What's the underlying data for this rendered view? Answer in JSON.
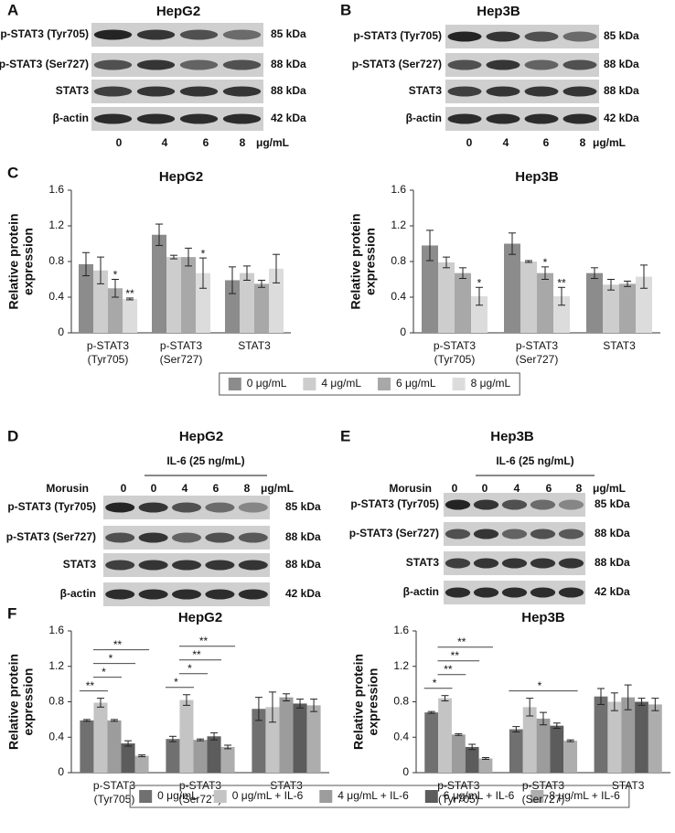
{
  "blots": [
    {
      "panel": "A",
      "title": "HepG2",
      "rows": [
        {
          "label": "p-STAT3 (Tyr705)",
          "kda": "85 kDa"
        },
        {
          "label": "p-STAT3 (Ser727)",
          "kda": "88 kDa"
        },
        {
          "label": "STAT3",
          "kda": "88 kDa"
        },
        {
          "label": "β-actin",
          "kda": "42 kDa"
        }
      ],
      "lanes": [
        "0",
        "4",
        "6",
        "8"
      ],
      "unit": "μg/mL"
    },
    {
      "panel": "B",
      "title": "Hep3B",
      "rows": [
        {
          "label": "p-STAT3 (Tyr705)",
          "kda": "85 kDa"
        },
        {
          "label": "p-STAT3 (Ser727)",
          "kda": "88 kDa"
        },
        {
          "label": "STAT3",
          "kda": "88 kDa"
        },
        {
          "label": "β-actin",
          "kda": "42 kDa"
        }
      ],
      "lanes": [
        "0",
        "4",
        "6",
        "8"
      ],
      "unit": "μg/mL"
    },
    {
      "panel": "D",
      "title": "HepG2",
      "treatment": "IL-6 (25 ng/mL)",
      "lane_label": "Morusin",
      "rows": [
        {
          "label": "p-STAT3 (Tyr705)",
          "kda": "85 kDa"
        },
        {
          "label": "p-STAT3 (Ser727)",
          "kda": "88 kDa"
        },
        {
          "label": "STAT3",
          "kda": "88 kDa"
        },
        {
          "label": "β-actin",
          "kda": "42 kDa"
        }
      ],
      "lanes": [
        "0",
        "0",
        "4",
        "6",
        "8"
      ],
      "unit": "μg/mL"
    },
    {
      "panel": "E",
      "title": "Hep3B",
      "treatment": "IL-6 (25 ng/mL)",
      "lane_label": "Morusin",
      "rows": [
        {
          "label": "p-STAT3 (Tyr705)",
          "kda": "85 kDa"
        },
        {
          "label": "p-STAT3 (Ser727)",
          "kda": "88 kDa"
        },
        {
          "label": "STAT3",
          "kda": "88 kDa"
        },
        {
          "label": "β-actin",
          "kda": "42 kDa"
        }
      ],
      "lanes": [
        "0",
        "0",
        "4",
        "6",
        "8"
      ],
      "unit": "μg/mL"
    }
  ],
  "chart_data": [
    {
      "type": "bar",
      "panel": "C",
      "title": "HepG2",
      "ylabel": [
        "Relative protein",
        "expression"
      ],
      "categories": [
        [
          "p-STAT3",
          "(Tyr705)"
        ],
        [
          "p-STAT3",
          "(Ser727)"
        ],
        [
          "STAT3"
        ]
      ],
      "ylim": [
        0,
        1.6
      ],
      "yticks": [
        0,
        0.4,
        0.8,
        1.2,
        1.6
      ],
      "legend": "bottom",
      "series": [
        {
          "name": "0 μg/mL",
          "color": "#8c8c8c",
          "values": [
            0.77,
            1.1,
            0.59
          ],
          "errors": [
            0.13,
            0.12,
            0.15
          ]
        },
        {
          "name": "4 μg/mL",
          "color": "#cdcdcd",
          "values": [
            0.7,
            0.85,
            0.67
          ],
          "errors": [
            0.15,
            0.02,
            0.08
          ]
        },
        {
          "name": "6 μg/mL",
          "color": "#a8a8a8",
          "values": [
            0.5,
            0.85,
            0.55
          ],
          "errors": [
            0.1,
            0.1,
            0.04
          ],
          "stars": [
            "*",
            null,
            null
          ]
        },
        {
          "name": "8 μg/mL",
          "color": "#dcdcdc",
          "values": [
            0.38,
            0.67,
            0.72
          ],
          "errors": [
            0.01,
            0.17,
            0.16
          ],
          "stars": [
            "**",
            "*",
            null
          ]
        }
      ]
    },
    {
      "type": "bar",
      "title": "Hep3B",
      "ylabel": [
        "Relative protein",
        "expression"
      ],
      "categories": [
        [
          "p-STAT3",
          "(Tyr705)"
        ],
        [
          "p-STAT3",
          "(Ser727)"
        ],
        [
          "STAT3"
        ]
      ],
      "ylim": [
        0,
        1.6
      ],
      "yticks": [
        0,
        0.4,
        0.8,
        1.2,
        1.6
      ],
      "series": [
        {
          "color": "#8c8c8c",
          "values": [
            0.98,
            1.0,
            0.67
          ],
          "errors": [
            0.17,
            0.12,
            0.06
          ]
        },
        {
          "color": "#cdcdcd",
          "values": [
            0.79,
            0.8,
            0.54
          ],
          "errors": [
            0.06,
            0.01,
            0.06
          ]
        },
        {
          "color": "#a8a8a8",
          "values": [
            0.67,
            0.67,
            0.55
          ],
          "errors": [
            0.06,
            0.07,
            0.03
          ],
          "stars": [
            null,
            "*",
            null
          ]
        },
        {
          "color": "#dcdcdc",
          "values": [
            0.41,
            0.41,
            0.63
          ],
          "errors": [
            0.1,
            0.1,
            0.13
          ],
          "stars": [
            "*",
            "**",
            null
          ]
        }
      ]
    },
    {
      "type": "bar",
      "panel": "F",
      "title": "HepG2",
      "ylabel": [
        "Relative protein",
        "expression"
      ],
      "categories": [
        [
          "p-STAT3",
          "(Tyr705)"
        ],
        [
          "p-STAT3",
          "(Ser727)"
        ],
        [
          "STAT3"
        ]
      ],
      "ylim": [
        0,
        1.6
      ],
      "yticks": [
        0,
        0.4,
        0.8,
        1.2,
        1.6
      ],
      "legend": "bottom",
      "series": [
        {
          "name": "0 μg/mL",
          "color": "#707070",
          "values": [
            0.59,
            0.38,
            0.72
          ],
          "errors": [
            0.01,
            0.03,
            0.13
          ]
        },
        {
          "name": "0 μg/mL + IL-6",
          "color": "#c4c4c4",
          "values": [
            0.79,
            0.82,
            0.74
          ],
          "errors": [
            0.05,
            0.06,
            0.17
          ]
        },
        {
          "name": "4 μg/mL + IL-6",
          "color": "#9c9c9c",
          "values": [
            0.59,
            0.37,
            0.85
          ],
          "errors": [
            0.01,
            0.01,
            0.04
          ]
        },
        {
          "name": "6 μg/mL + IL-6",
          "color": "#5c5c5c",
          "values": [
            0.33,
            0.41,
            0.78
          ],
          "errors": [
            0.03,
            0.04,
            0.05
          ]
        },
        {
          "name": "8 μg/mL + IL-6",
          "color": "#adadad",
          "values": [
            0.19,
            0.29,
            0.76
          ],
          "errors": [
            0.01,
            0.02,
            0.07
          ]
        }
      ],
      "comparisons": [
        {
          "category": 0,
          "from": 0,
          "to": 1,
          "label": "**"
        },
        {
          "category": 0,
          "from": 1,
          "to": 2,
          "label": "*"
        },
        {
          "category": 0,
          "from": 1,
          "to": 3,
          "label": "*"
        },
        {
          "category": 0,
          "from": 1,
          "to": 4,
          "label": "**"
        },
        {
          "category": 1,
          "from": 0,
          "to": 1,
          "label": "*"
        },
        {
          "category": 1,
          "from": 1,
          "to": 2,
          "label": "*"
        },
        {
          "category": 1,
          "from": 1,
          "to": 3,
          "label": "**"
        },
        {
          "category": 1,
          "from": 1,
          "to": 4,
          "label": "**"
        }
      ]
    },
    {
      "type": "bar",
      "title": "Hep3B",
      "ylabel": [
        "Relative protein",
        "expression"
      ],
      "categories": [
        [
          "p-STAT3",
          "(Tyr705)"
        ],
        [
          "p-STAT3",
          "(Ser727)"
        ],
        [
          "STAT3"
        ]
      ],
      "ylim": [
        0,
        1.6
      ],
      "yticks": [
        0,
        0.4,
        0.8,
        1.2,
        1.6
      ],
      "series": [
        {
          "color": "#707070",
          "values": [
            0.68,
            0.49,
            0.86
          ],
          "errors": [
            0.01,
            0.03,
            0.09
          ]
        },
        {
          "color": "#c4c4c4",
          "values": [
            0.84,
            0.74,
            0.8
          ],
          "errors": [
            0.03,
            0.1,
            0.1
          ]
        },
        {
          "color": "#9c9c9c",
          "values": [
            0.43,
            0.61,
            0.85
          ],
          "errors": [
            0.01,
            0.07,
            0.14
          ]
        },
        {
          "color": "#5c5c5c",
          "values": [
            0.29,
            0.53,
            0.8
          ],
          "errors": [
            0.03,
            0.03,
            0.04
          ]
        },
        {
          "color": "#adadad",
          "values": [
            0.16,
            0.36,
            0.77
          ],
          "errors": [
            0.01,
            0.01,
            0.07
          ]
        }
      ],
      "comparisons": [
        {
          "category": 0,
          "from": 0,
          "to": 1,
          "label": "*"
        },
        {
          "category": 0,
          "from": 1,
          "to": 2,
          "label": "**"
        },
        {
          "category": 0,
          "from": 1,
          "to": 3,
          "label": "**"
        },
        {
          "category": 0,
          "from": 1,
          "to": 4,
          "label": "**"
        },
        {
          "category": 1,
          "from": 0,
          "to": 4,
          "label": "*"
        }
      ]
    }
  ]
}
